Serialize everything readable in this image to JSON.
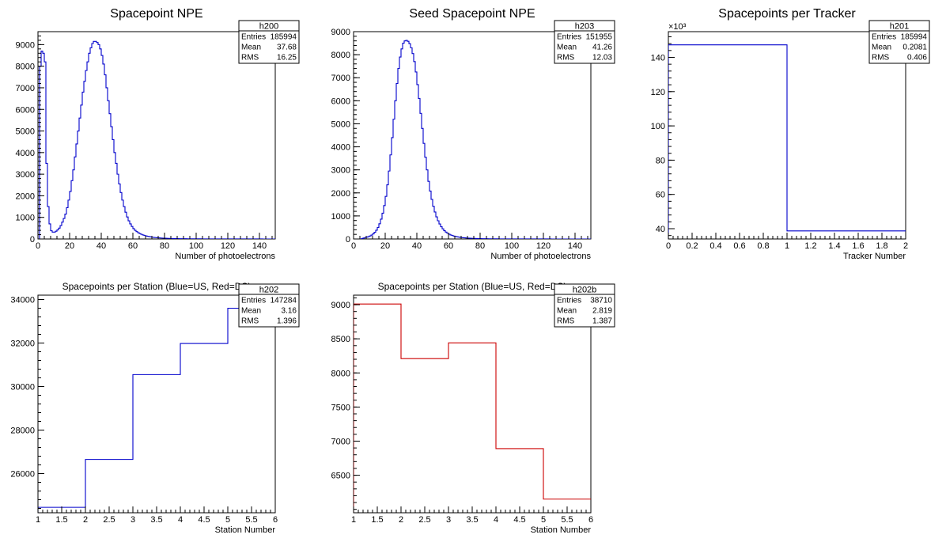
{
  "canvas": {
    "background": "#ffffff"
  },
  "chart_data": [
    {
      "type": "histogram",
      "title": "Spacepoint NPE",
      "xlabel": "Number of photoelectrons",
      "ylabel": "",
      "xlim": [
        0,
        150
      ],
      "ylim": [
        0,
        9600
      ],
      "xticks": [
        "0",
        "20",
        "40",
        "60",
        "80",
        "100",
        "120",
        "140"
      ],
      "yticks": [
        "0",
        "1000",
        "2000",
        "3000",
        "4000",
        "5000",
        "6000",
        "7000",
        "8000",
        "9000"
      ],
      "x_multiplier": "",
      "y_multiplier": "",
      "color": "#0000cc",
      "series": [
        {
          "bin_edges_start": 0,
          "bin_width": 1,
          "values": [
            0,
            8000,
            8700,
            8600,
            8200,
            3500,
            1500,
            700,
            380,
            320,
            320,
            360,
            420,
            500,
            620,
            780,
            950,
            1150,
            1450,
            1800,
            2200,
            2700,
            3200,
            3800,
            4400,
            5000,
            5600,
            6200,
            6800,
            7300,
            7800,
            8200,
            8600,
            8850,
            9050,
            9150,
            9150,
            9100,
            9000,
            8800,
            8500,
            8100,
            7600,
            7000,
            6400,
            5800,
            5200,
            4600,
            4000,
            3500,
            3000,
            2550,
            2150,
            1800,
            1500,
            1240,
            1020,
            840,
            700,
            580,
            480,
            400,
            340,
            290,
            250,
            215,
            185,
            160,
            140,
            122,
            106,
            93,
            82,
            72,
            64,
            57,
            51,
            46,
            41,
            37,
            33,
            30,
            27,
            25,
            22,
            20,
            18,
            17,
            15,
            14,
            13,
            12,
            11,
            10,
            9,
            9,
            8,
            7,
            7,
            6,
            6,
            5,
            5,
            5,
            4,
            4,
            4,
            3,
            3,
            3,
            3,
            3,
            2,
            2,
            2,
            2,
            2,
            2,
            2,
            2,
            1,
            1,
            1,
            1,
            1,
            1,
            1,
            1,
            1,
            1,
            1,
            1,
            1,
            1,
            1,
            1,
            1,
            1,
            1,
            1,
            1,
            1,
            0,
            0,
            0,
            0,
            0,
            0,
            0,
            0,
            0,
            0
          ]
        }
      ],
      "stats": {
        "name": "h200",
        "rows": [
          {
            "label": "Entries",
            "value": "185994"
          },
          {
            "label": "Mean",
            "value": "37.68"
          },
          {
            "label": "RMS",
            "value": "16.25"
          }
        ]
      }
    },
    {
      "type": "histogram",
      "title": "Seed Spacepoint NPE",
      "xlabel": "Number of photoelectrons",
      "ylabel": "",
      "xlim": [
        0,
        150
      ],
      "ylim": [
        0,
        9000
      ],
      "xticks": [
        "0",
        "20",
        "40",
        "60",
        "80",
        "100",
        "120",
        "140"
      ],
      "yticks": [
        "0",
        "1000",
        "2000",
        "3000",
        "4000",
        "5000",
        "6000",
        "7000",
        "8000",
        "9000"
      ],
      "x_multiplier": "",
      "y_multiplier": "",
      "color": "#0000cc",
      "series": [
        {
          "bin_edges_start": 0,
          "bin_width": 1,
          "values": [
            0,
            0,
            0,
            0,
            0,
            20,
            40,
            60,
            80,
            100,
            130,
            170,
            220,
            290,
            380,
            500,
            660,
            860,
            1120,
            1450,
            1850,
            2350,
            2950,
            3650,
            4400,
            5200,
            6000,
            6750,
            7400,
            7900,
            8250,
            8500,
            8600,
            8620,
            8580,
            8480,
            8300,
            8050,
            7700,
            7250,
            6700,
            6100,
            5450,
            4800,
            4150,
            3550,
            3000,
            2500,
            2080,
            1720,
            1420,
            1170,
            960,
            790,
            650,
            530,
            440,
            360,
            300,
            250,
            210,
            175,
            150,
            128,
            110,
            95,
            83,
            72,
            63,
            55,
            48,
            42,
            37,
            33,
            29,
            26,
            23,
            21,
            19,
            17,
            15,
            13,
            12,
            11,
            10,
            9,
            8,
            7,
            7,
            6,
            5,
            5,
            4,
            4,
            4,
            3,
            3,
            3,
            3,
            2,
            2,
            2,
            2,
            2,
            2,
            2,
            1,
            1,
            1,
            1,
            1,
            1,
            1,
            1,
            1,
            1,
            1,
            1,
            1,
            1,
            1,
            1,
            1,
            1,
            1,
            0,
            0,
            0,
            0,
            0,
            0,
            0,
            0,
            0,
            0,
            0,
            0,
            0,
            0,
            0,
            0,
            0,
            0,
            0,
            0,
            0,
            0,
            0,
            0,
            0,
            0,
            0,
            0
          ]
        }
      ],
      "stats": {
        "name": "h203",
        "rows": [
          {
            "label": "Entries",
            "value": "151955"
          },
          {
            "label": "Mean",
            "value": "41.26"
          },
          {
            "label": "RMS",
            "value": "12.03"
          }
        ]
      }
    },
    {
      "type": "histogram",
      "title": "Spacepoints per Tracker",
      "xlabel": "Tracker Number",
      "ylabel": "",
      "xlim": [
        0,
        2
      ],
      "ylim": [
        34000,
        155000
      ],
      "xticks": [
        "0",
        "0.2",
        "0.4",
        "0.6",
        "0.8",
        "1",
        "1.2",
        "1.4",
        "1.6",
        "1.8",
        "2"
      ],
      "yticks": [
        "40",
        "60",
        "80",
        "100",
        "120",
        "140"
      ],
      "ytick_values": [
        40000,
        60000,
        80000,
        100000,
        120000,
        140000
      ],
      "x_multiplier": "",
      "y_multiplier": "×10³",
      "color": "#0000cc",
      "series": [
        {
          "bin_edges_start": 0,
          "bin_width": 1,
          "values": [
            147284,
            38710
          ]
        }
      ],
      "stats": {
        "name": "h201",
        "rows": [
          {
            "label": "Entries",
            "value": "185994"
          },
          {
            "label": "Mean",
            "value": "0.2081"
          },
          {
            "label": "RMS",
            "value": "0.406"
          }
        ]
      }
    },
    {
      "type": "histogram",
      "title": "Spacepoints per Station (Blue=US, Red=DS)",
      "xlabel": "Station Number",
      "ylabel": "",
      "xlim": [
        1,
        6
      ],
      "ylim": [
        24200,
        34200
      ],
      "xticks": [
        "1",
        "1.5",
        "2",
        "2.5",
        "3",
        "3.5",
        "4",
        "4.5",
        "5",
        "5.5",
        "6"
      ],
      "yticks": [
        "26000",
        "28000",
        "30000",
        "32000",
        "34000"
      ],
      "x_multiplier": "",
      "y_multiplier": "",
      "color": "#0000cc",
      "series": [
        {
          "name": "US",
          "bin_edges_start": 1,
          "bin_width": 1,
          "values": [
            24450,
            26650,
            30550,
            31980,
            33600
          ]
        }
      ],
      "stats": {
        "name": "h202",
        "rows": [
          {
            "label": "Entries",
            "value": "147284"
          },
          {
            "label": "Mean",
            "value": "3.16"
          },
          {
            "label": "RMS",
            "value": "1.396"
          }
        ]
      }
    },
    {
      "type": "histogram",
      "title": "Spacepoints per Station (Blue=US, Red=DS)",
      "xlabel": "Station Number",
      "ylabel": "",
      "xlim": [
        1,
        6
      ],
      "ylim": [
        5950,
        9140
      ],
      "xticks": [
        "1",
        "1.5",
        "2",
        "2.5",
        "3",
        "3.5",
        "4",
        "4.5",
        "5",
        "5.5",
        "6"
      ],
      "yticks": [
        "6500",
        "7000",
        "7500",
        "8000",
        "8500",
        "9000"
      ],
      "x_multiplier": "",
      "y_multiplier": "",
      "color": "#cc0000",
      "series": [
        {
          "name": "DS",
          "bin_edges_start": 1,
          "bin_width": 1,
          "values": [
            9010,
            8210,
            8440,
            6890,
            6150
          ]
        }
      ],
      "stats": {
        "name": "h202b",
        "rows": [
          {
            "label": "Entries",
            "value": "38710"
          },
          {
            "label": "Mean",
            "value": "2.819"
          },
          {
            "label": "RMS",
            "value": "1.387"
          }
        ]
      }
    }
  ]
}
